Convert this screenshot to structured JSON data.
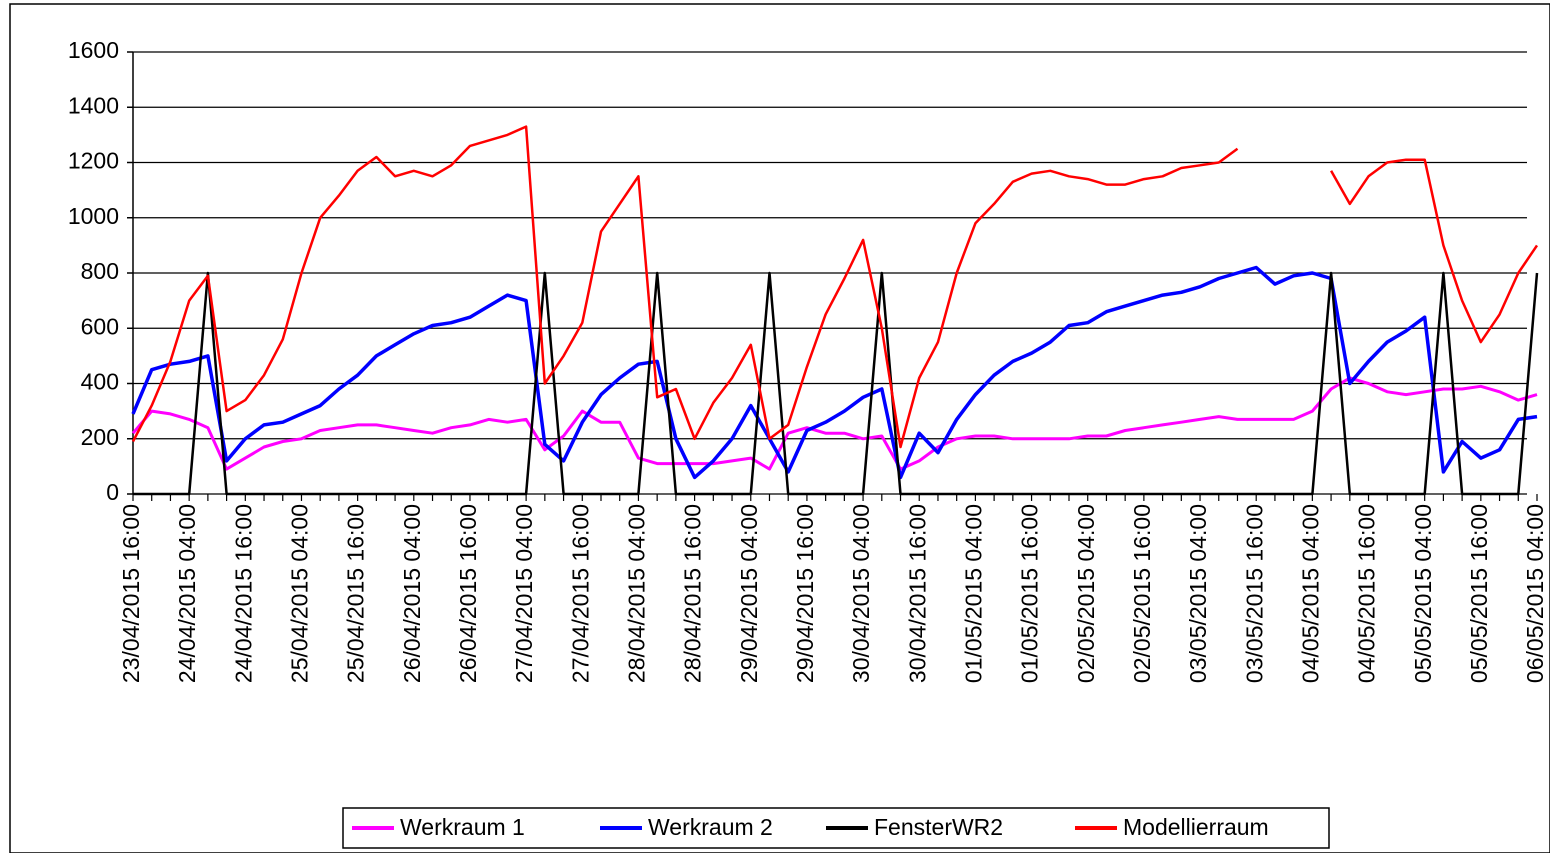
{
  "chart_data": {
    "type": "line",
    "categories": [
      "23/04/2015 16:00",
      null,
      null,
      "24/04/2015 04:00",
      null,
      null,
      "24/04/2015 16:00",
      null,
      null,
      "25/04/2015 04:00",
      null,
      null,
      "25/04/2015 16:00",
      null,
      null,
      "26/04/2015 04:00",
      null,
      null,
      "26/04/2015 16:00",
      null,
      null,
      "27/04/2015 04:00",
      null,
      null,
      "27/04/2015 16:00",
      null,
      null,
      "28/04/2015 04:00",
      null,
      null,
      "28/04/2015 16:00",
      null,
      null,
      "29/04/2015 04:00",
      null,
      null,
      "29/04/2015 16:00",
      null,
      null,
      "30/04/2015 04:00",
      null,
      null,
      "30/04/2015 16:00",
      null,
      null,
      "01/05/2015 04:00",
      null,
      null,
      "01/05/2015 16:00",
      null,
      null,
      "02/05/2015 04:00",
      null,
      null,
      "02/05/2015 16:00",
      null,
      null,
      "03/05/2015 04:00",
      null,
      null,
      "03/05/2015 16:00",
      null,
      null,
      "04/05/2015 04:00",
      null,
      null,
      "04/05/2015 16:00",
      null,
      null,
      "05/05/2015 04:00",
      null,
      null,
      "05/05/2015 16:00",
      null,
      null,
      "06/05/2015 04:00"
    ],
    "series": [
      {
        "name": "Werkraum 1",
        "color": "#ff00ff",
        "values": [
          220,
          300,
          290,
          270,
          240,
          90,
          130,
          170,
          190,
          200,
          230,
          240,
          250,
          250,
          240,
          230,
          220,
          240,
          250,
          270,
          260,
          270,
          160,
          210,
          300,
          260,
          260,
          130,
          110,
          110,
          110,
          110,
          120,
          130,
          90,
          220,
          240,
          220,
          220,
          200,
          210,
          90,
          120,
          170,
          200,
          210,
          210,
          200,
          200,
          200,
          200,
          210,
          210,
          230,
          240,
          250,
          260,
          270,
          280,
          270,
          270,
          270,
          270,
          300,
          380,
          420,
          400,
          370,
          360,
          370,
          380,
          380,
          390,
          370,
          340,
          360
        ]
      },
      {
        "name": "Werkraum 2",
        "color": "#0000ff",
        "values": [
          290,
          450,
          470,
          480,
          500,
          120,
          200,
          250,
          260,
          290,
          320,
          380,
          430,
          500,
          540,
          580,
          610,
          620,
          640,
          680,
          720,
          700,
          180,
          120,
          260,
          360,
          420,
          470,
          480,
          200,
          60,
          120,
          200,
          320,
          200,
          80,
          230,
          260,
          300,
          350,
          380,
          60,
          220,
          150,
          270,
          360,
          430,
          480,
          510,
          550,
          610,
          620,
          660,
          680,
          700,
          720,
          730,
          750,
          780,
          800,
          820,
          760,
          790,
          800,
          780,
          400,
          480,
          550,
          590,
          640,
          80,
          190,
          130,
          160,
          270,
          280
        ]
      },
      {
        "name": "FensterWR2",
        "color": "#000000",
        "values": [
          0,
          0,
          0,
          0,
          800,
          0,
          0,
          0,
          0,
          0,
          0,
          0,
          0,
          0,
          0,
          0,
          0,
          0,
          0,
          0,
          0,
          0,
          800,
          0,
          0,
          0,
          0,
          0,
          800,
          0,
          0,
          0,
          0,
          0,
          800,
          0,
          0,
          0,
          0,
          0,
          800,
          0,
          0,
          0,
          0,
          0,
          0,
          0,
          0,
          0,
          0,
          0,
          0,
          0,
          0,
          0,
          0,
          0,
          0,
          0,
          0,
          0,
          0,
          0,
          800,
          0,
          0,
          0,
          0,
          0,
          800,
          0,
          0,
          0,
          0,
          800
        ]
      },
      {
        "name": "Modellierraum",
        "color": "#ff0000",
        "values": [
          190,
          320,
          480,
          700,
          790,
          300,
          340,
          430,
          560,
          800,
          1000,
          1080,
          1170,
          1220,
          1150,
          1170,
          1150,
          1190,
          1260,
          1280,
          1300,
          1330,
          400,
          500,
          620,
          950,
          1050,
          1150,
          350,
          380,
          200,
          330,
          420,
          540,
          200,
          250,
          460,
          650,
          780,
          920,
          600,
          170,
          420,
          550,
          800,
          980,
          1050,
          1130,
          1160,
          1170,
          1150,
          1140,
          1120,
          1120,
          1140,
          1150,
          1180,
          1190,
          1200,
          1250,
          null,
          null,
          null,
          null,
          1170,
          1050,
          1150,
          1200,
          1210,
          1210,
          900,
          700,
          550,
          650,
          800,
          900
        ]
      }
    ],
    "ylim": [
      0,
      1600
    ],
    "yticks": [
      0,
      200,
      400,
      600,
      800,
      1000,
      1200,
      1400,
      1600
    ],
    "grid": true,
    "legend": "bottom"
  }
}
